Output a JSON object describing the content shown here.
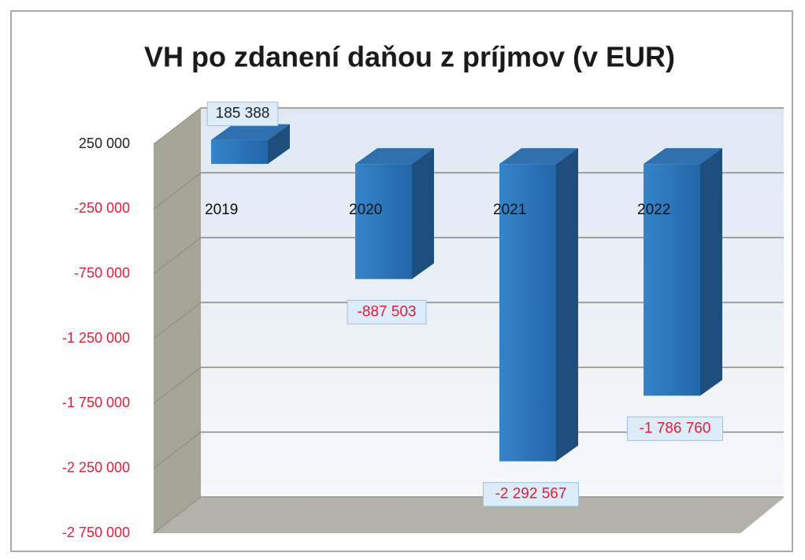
{
  "chart_data": {
    "type": "bar3d",
    "title": "VH po zdanení daňou z príjmov (v EUR)",
    "categories": [
      "2019",
      "2020",
      "2021",
      "2022"
    ],
    "values": [
      185388,
      -887503,
      -2292567,
      -1786760
    ],
    "value_labels": [
      "185 388",
      "-887 503",
      "-2 292 567",
      "-1 786 760"
    ],
    "color": "#2a72b5",
    "ylim": [
      -2750000,
      250000
    ],
    "yticks": [
      {
        "value": 250000,
        "label": "250 000"
      },
      {
        "value": -250000,
        "label": "-250 000"
      },
      {
        "value": -750000,
        "label": "-750 000"
      },
      {
        "value": -1250000,
        "label": "-1 250 000"
      },
      {
        "value": -1750000,
        "label": "-1 750 000"
      },
      {
        "value": -2250000,
        "label": "-2 250 000"
      },
      {
        "value": -2750000,
        "label": "-2 750 000"
      }
    ],
    "grid": true
  }
}
